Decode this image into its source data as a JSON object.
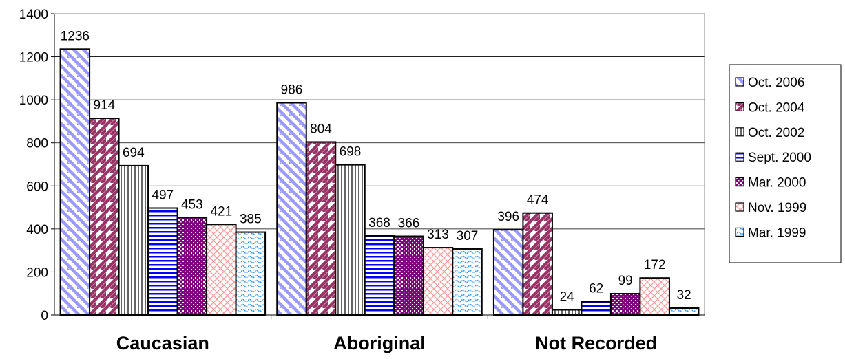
{
  "chart_data": {
    "type": "bar",
    "categories": [
      "Caucasian",
      "Aboriginal",
      "Not Recorded"
    ],
    "series": [
      {
        "name": "Oct. 2006",
        "values": [
          1236,
          986,
          396
        ],
        "color": "#9999ff",
        "pattern": "diag-left"
      },
      {
        "name": "Oct. 2004",
        "values": [
          914,
          804,
          474
        ],
        "color": "#993366",
        "pattern": "diag-right"
      },
      {
        "name": "Oct. 2002",
        "values": [
          694,
          698,
          24
        ],
        "color": "#000000",
        "pattern": "vertical"
      },
      {
        "name": "Sept. 2000",
        "values": [
          497,
          368,
          62
        ],
        "color": "#0000ff",
        "pattern": "horizontal"
      },
      {
        "name": "Mar. 2000",
        "values": [
          453,
          366,
          99
        ],
        "color": "#800080",
        "pattern": "dots"
      },
      {
        "name": "Nov. 1999",
        "values": [
          421,
          313,
          172
        ],
        "color": "#ff9999",
        "pattern": "cross"
      },
      {
        "name": "Mar. 1999",
        "values": [
          385,
          307,
          32
        ],
        "color": "#3399ff",
        "pattern": "wave"
      }
    ],
    "y_ticks": [
      "0",
      "200",
      "400",
      "600",
      "800",
      "1000",
      "1200",
      "1400"
    ],
    "ylim": [
      0,
      1400
    ],
    "grid": true,
    "legend_position": "right"
  }
}
